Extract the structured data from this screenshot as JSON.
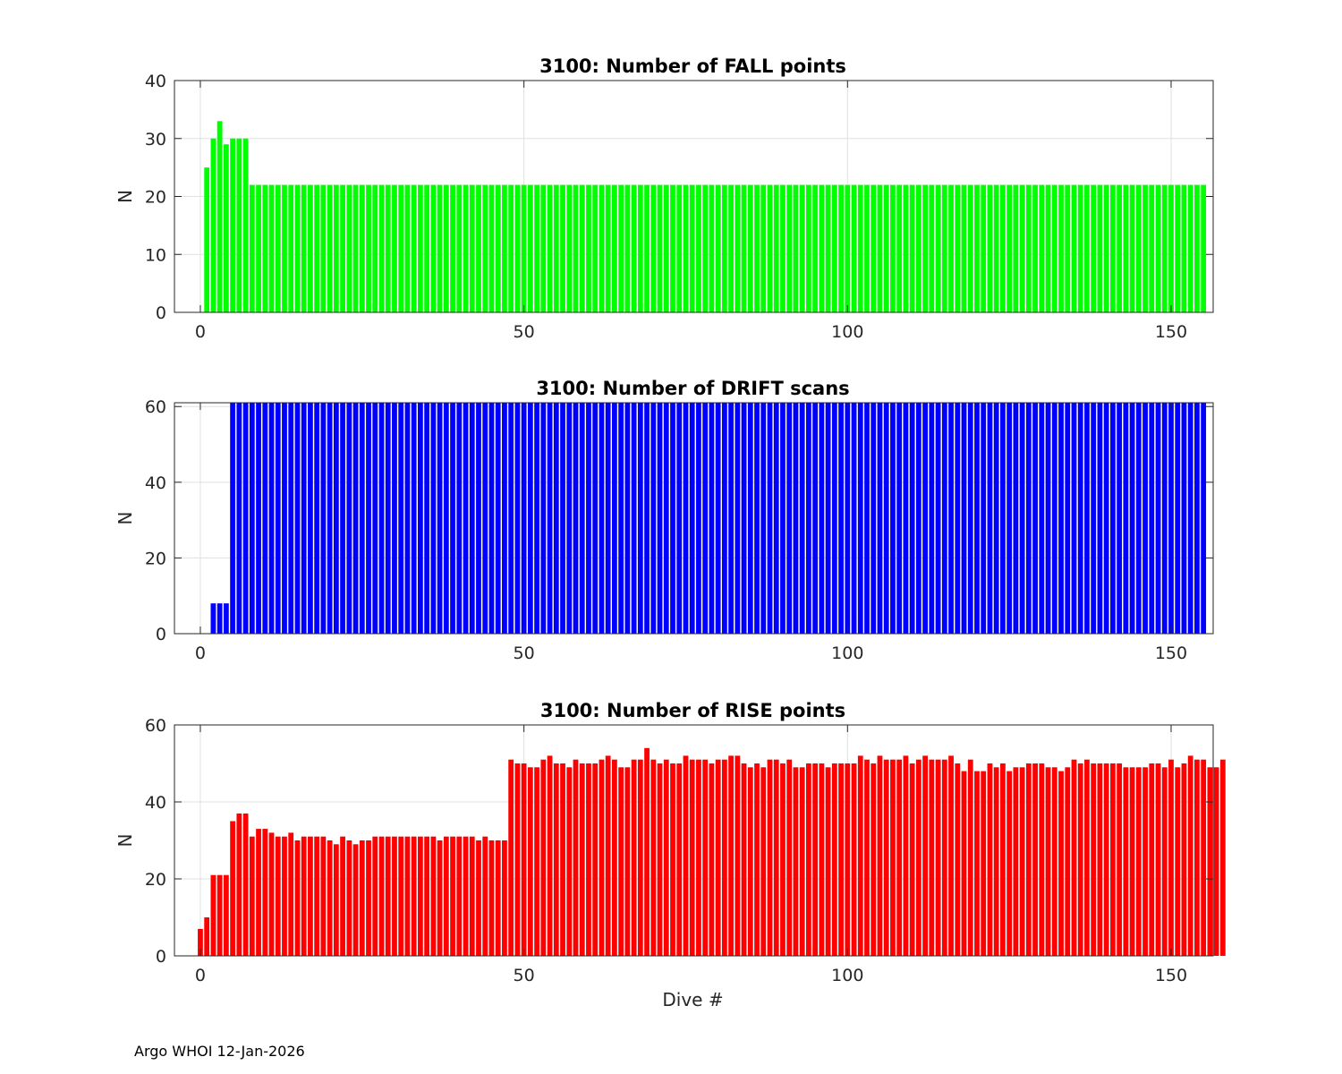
{
  "footer": "Argo WHOI 12-Jan-2026",
  "chart_data": [
    {
      "type": "bar",
      "title": "3100: Number of FALL points",
      "xlabel": "",
      "ylabel": "N",
      "color": "#00ff00",
      "xlim": [
        -4,
        156.5
      ],
      "ylim": [
        0,
        40
      ],
      "xticks": [
        0,
        50,
        100,
        150
      ],
      "yticks": [
        0,
        10,
        20,
        30,
        40
      ],
      "grid": true,
      "x_start": 1,
      "values": [
        25,
        30,
        33,
        29,
        30,
        30,
        30,
        22,
        22,
        22,
        22,
        22,
        22,
        22,
        22,
        22,
        22,
        22,
        22,
        22,
        22,
        22,
        22,
        22,
        22,
        22,
        22,
        22,
        22,
        22,
        22,
        22,
        22,
        22,
        22,
        22,
        22,
        22,
        22,
        22,
        22,
        22,
        22,
        22,
        22,
        22,
        22,
        22,
        22,
        22,
        22,
        22,
        22,
        22,
        22,
        22,
        22,
        22,
        22,
        22,
        22,
        22,
        22,
        22,
        22,
        22,
        22,
        22,
        22,
        22,
        22,
        22,
        22,
        22,
        22,
        22,
        22,
        22,
        22,
        22,
        22,
        22,
        22,
        22,
        22,
        22,
        22,
        22,
        22,
        22,
        22,
        22,
        22,
        22,
        22,
        22,
        22,
        22,
        22,
        22,
        22,
        22,
        22,
        22,
        22,
        22,
        22,
        22,
        22,
        22,
        22,
        22,
        22,
        22,
        22,
        22,
        22,
        22,
        22,
        22,
        22,
        22,
        22,
        22,
        22,
        22,
        22,
        22,
        22,
        22,
        22,
        22,
        22,
        22,
        22,
        22,
        22,
        22,
        22,
        22,
        22,
        22,
        22,
        22,
        22,
        22,
        22,
        22,
        22,
        22,
        22,
        22,
        22,
        22,
        22
      ]
    },
    {
      "type": "bar",
      "title": "3100: Number of DRIFT scans",
      "xlabel": "",
      "ylabel": "N",
      "color": "#0000ff",
      "xlim": [
        -4,
        156.5
      ],
      "ylim": [
        0,
        61
      ],
      "xticks": [
        0,
        50,
        100,
        150
      ],
      "yticks": [
        0,
        20,
        40,
        60
      ],
      "grid": true,
      "x_start": 1,
      "values": [
        0,
        8,
        8,
        8,
        61,
        61,
        61,
        61,
        61,
        61,
        61,
        61,
        61,
        61,
        61,
        61,
        61,
        61,
        61,
        61,
        61,
        61,
        61,
        61,
        61,
        61,
        61,
        61,
        61,
        61,
        61,
        61,
        61,
        61,
        61,
        61,
        61,
        61,
        61,
        61,
        61,
        61,
        61,
        61,
        61,
        61,
        61,
        61,
        61,
        61,
        61,
        61,
        61,
        61,
        61,
        61,
        61,
        61,
        61,
        61,
        61,
        61,
        61,
        61,
        61,
        61,
        61,
        61,
        61,
        61,
        61,
        61,
        61,
        61,
        61,
        61,
        61,
        61,
        61,
        61,
        61,
        61,
        61,
        61,
        61,
        61,
        61,
        61,
        61,
        61,
        61,
        61,
        61,
        61,
        61,
        61,
        61,
        61,
        61,
        61,
        61,
        61,
        61,
        61,
        61,
        61,
        61,
        61,
        61,
        61,
        61,
        61,
        61,
        61,
        61,
        61,
        61,
        61,
        61,
        61,
        61,
        61,
        61,
        61,
        61,
        61,
        61,
        61,
        61,
        61,
        61,
        61,
        61,
        61,
        61,
        61,
        61,
        61,
        61,
        61,
        61,
        61,
        61,
        61,
        61,
        61,
        61,
        61,
        61,
        61,
        61,
        61,
        61,
        61,
        61
      ]
    },
    {
      "type": "bar",
      "title": "3100: Number of RISE points",
      "xlabel": "Dive #",
      "ylabel": "N",
      "color": "#ff0000",
      "xlim": [
        -4,
        156.5
      ],
      "ylim": [
        0,
        60
      ],
      "xticks": [
        0,
        50,
        100,
        150
      ],
      "yticks": [
        0,
        20,
        40,
        60
      ],
      "grid": true,
      "x_start": 0,
      "values": [
        7,
        10,
        21,
        21,
        21,
        35,
        37,
        37,
        31,
        33,
        33,
        32,
        31,
        31,
        32,
        30,
        31,
        31,
        31,
        31,
        30,
        29,
        31,
        30,
        29,
        30,
        30,
        31,
        31,
        31,
        31,
        31,
        31,
        31,
        31,
        31,
        31,
        30,
        31,
        31,
        31,
        31,
        31,
        30,
        31,
        30,
        30,
        30,
        51,
        50,
        50,
        49,
        49,
        51,
        52,
        50,
        50,
        49,
        51,
        50,
        50,
        50,
        51,
        52,
        51,
        49,
        49,
        51,
        51,
        54,
        51,
        50,
        51,
        50,
        50,
        52,
        51,
        51,
        51,
        50,
        51,
        51,
        52,
        52,
        50,
        49,
        50,
        49,
        51,
        51,
        50,
        51,
        49,
        49,
        50,
        50,
        50,
        49,
        50,
        50,
        50,
        50,
        52,
        51,
        50,
        52,
        51,
        51,
        51,
        52,
        50,
        51,
        52,
        51,
        51,
        51,
        52,
        50,
        48,
        51,
        48,
        48,
        50,
        49,
        50,
        48,
        49,
        49,
        50,
        50,
        50,
        49,
        49,
        48,
        49,
        51,
        50,
        51,
        50,
        50,
        50,
        50,
        50,
        49,
        49,
        49,
        49,
        50,
        50,
        49,
        51,
        49,
        50,
        52,
        51,
        51,
        49,
        49,
        51
      ]
    }
  ]
}
